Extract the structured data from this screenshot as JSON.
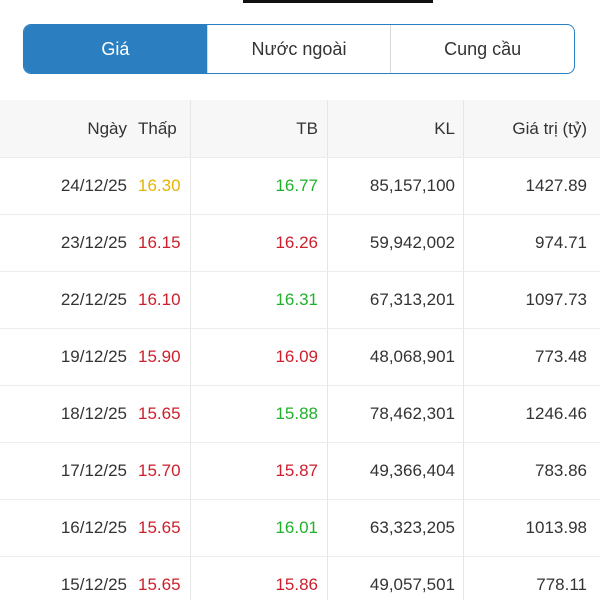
{
  "tabs": [
    "Giá",
    "Nước ngoài",
    "Cung cầu"
  ],
  "active_tab": 0,
  "table": {
    "headers": [
      "Ngày",
      "Thấp",
      "TB",
      "KL",
      "Giá trị (tỷ)"
    ],
    "rows": [
      [
        "24/12/25",
        "16.30",
        "16.77",
        "85,157,100",
        "1427.89"
      ],
      [
        "23/12/25",
        "16.15",
        "16.26",
        "59,942,002",
        "974.71"
      ],
      [
        "22/12/25",
        "16.10",
        "16.31",
        "67,313,201",
        "1097.73"
      ],
      [
        "19/12/25",
        "15.90",
        "16.09",
        "48,068,901",
        "773.48"
      ],
      [
        "18/12/25",
        "15.65",
        "15.88",
        "78,462,301",
        "1246.46"
      ],
      [
        "17/12/25",
        "15.70",
        "15.87",
        "49,366,404",
        "783.86"
      ],
      [
        "16/12/25",
        "15.65",
        "16.01",
        "63,323,205",
        "1013.98"
      ],
      [
        "15/12/25",
        "15.65",
        "15.86",
        "49,057,501",
        "778.11"
      ]
    ],
    "cell_colors": [
      [
        null,
        "#e6b400",
        "#22b02c",
        null,
        null
      ],
      [
        null,
        "#cc1f2b",
        "#cc1f2b",
        null,
        null
      ],
      [
        null,
        "#cc1f2b",
        "#22b02c",
        null,
        null
      ],
      [
        null,
        "#cc1f2b",
        "#cc1f2b",
        null,
        null
      ],
      [
        null,
        "#cc1f2b",
        "#22b02c",
        null,
        null
      ],
      [
        null,
        "#cc1f2b",
        "#cc1f2b",
        null,
        null
      ],
      [
        null,
        "#cc1f2b",
        "#22b02c",
        null,
        null
      ],
      [
        null,
        "#cc1f2b",
        "#cc1f2b",
        null,
        null
      ]
    ]
  }
}
